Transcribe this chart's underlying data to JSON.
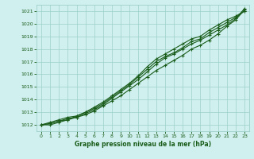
{
  "xlabel": "Graphe pression niveau de la mer (hPa)",
  "ylim": [
    1011.5,
    1021.5
  ],
  "xlim": [
    -0.5,
    23.5
  ],
  "yticks": [
    1012,
    1013,
    1014,
    1015,
    1016,
    1017,
    1018,
    1019,
    1020,
    1021
  ],
  "xticks": [
    0,
    1,
    2,
    3,
    4,
    5,
    6,
    7,
    8,
    9,
    10,
    11,
    12,
    13,
    14,
    15,
    16,
    17,
    18,
    19,
    20,
    21,
    22,
    23
  ],
  "background_color": "#cff0ee",
  "grid_color": "#9ecfca",
  "line_color": "#1a5c1a",
  "series": [
    [
      1012.0,
      1012.1,
      1012.3,
      1012.5,
      1012.6,
      1012.8,
      1013.1,
      1013.5,
      1013.9,
      1014.3,
      1014.8,
      1015.3,
      1015.8,
      1016.3,
      1016.7,
      1017.1,
      1017.5,
      1018.0,
      1018.3,
      1018.7,
      1019.2,
      1019.8,
      1020.3,
      1021.1
    ],
    [
      1012.0,
      1012.2,
      1012.4,
      1012.6,
      1012.7,
      1013.0,
      1013.3,
      1013.7,
      1014.2,
      1014.7,
      1015.2,
      1015.8,
      1016.4,
      1017.0,
      1017.4,
      1017.7,
      1018.1,
      1018.6,
      1018.8,
      1019.3,
      1019.7,
      1020.1,
      1020.5,
      1021.0
    ],
    [
      1012.0,
      1012.1,
      1012.3,
      1012.4,
      1012.6,
      1012.9,
      1013.2,
      1013.6,
      1014.1,
      1014.6,
      1015.1,
      1015.6,
      1016.2,
      1016.8,
      1017.3,
      1017.6,
      1018.0,
      1018.4,
      1018.7,
      1019.1,
      1019.5,
      1019.9,
      1020.4,
      1021.2
    ],
    [
      1012.0,
      1012.0,
      1012.2,
      1012.4,
      1012.7,
      1013.0,
      1013.4,
      1013.8,
      1014.3,
      1014.8,
      1015.3,
      1015.9,
      1016.6,
      1017.2,
      1017.6,
      1018.0,
      1018.4,
      1018.8,
      1019.0,
      1019.5,
      1019.9,
      1020.3,
      1020.6,
      1021.0
    ]
  ],
  "marker_size": 2.5,
  "line_width": 0.8
}
